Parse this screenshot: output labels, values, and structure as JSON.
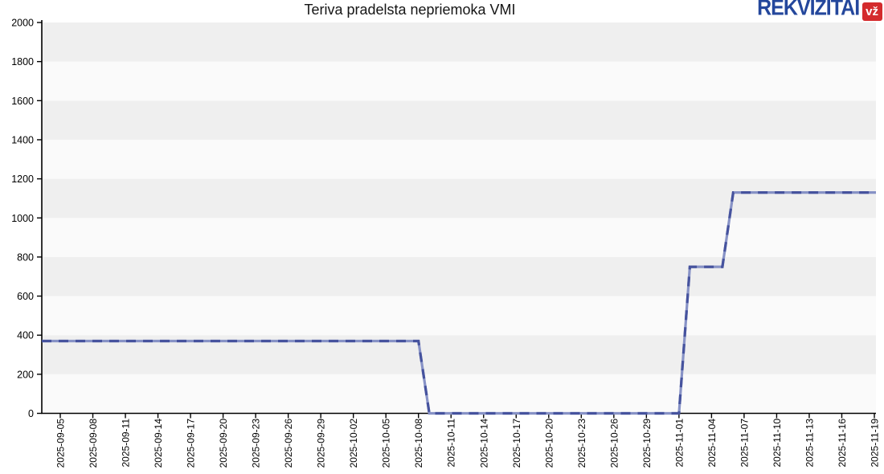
{
  "header": {
    "title": "Teriva pradelsta nepriemoka VMI",
    "logo": {
      "text": "REKVIZITAI",
      "badge": "vž",
      "brand_blue": "#24479c",
      "brand_red": "#d42b2d"
    }
  },
  "chart_data": {
    "type": "line",
    "title": "Teriva pradelsta nepriemoka VMI",
    "xlabel": "",
    "ylabel": "",
    "ylim": [
      0,
      2000
    ],
    "y_ticks": [
      0,
      200,
      400,
      600,
      800,
      1000,
      1200,
      1400,
      1600,
      1800,
      2000
    ],
    "x_tick_labels": [
      "2025-09-05",
      "2025-09-08",
      "2025-09-11",
      "2025-09-14",
      "2025-09-17",
      "2025-09-20",
      "2025-09-23",
      "2025-09-26",
      "2025-09-29",
      "2025-10-02",
      "2025-10-05",
      "2025-10-08",
      "2025-10-11",
      "2025-10-14",
      "2025-10-17",
      "2025-10-20",
      "2025-10-23",
      "2025-10-26",
      "2025-10-29",
      "2025-11-01",
      "2025-11-04",
      "2025-11-07",
      "2025-11-10",
      "2025-11-13",
      "2025-11-16",
      "2025-11-19"
    ],
    "grid": "alternating horizontal bands every 200 units",
    "legend_position": "none",
    "series": [
      {
        "name": "Pradelsta nepriemoka VMI",
        "line_style": "light solid line with dark dashed overlay",
        "points": [
          [
            "2025-09-03",
            370
          ],
          [
            "2025-10-08",
            370
          ],
          [
            "2025-10-09",
            0
          ],
          [
            "2025-11-01",
            0
          ],
          [
            "2025-11-02",
            750
          ],
          [
            "2025-11-05",
            750
          ],
          [
            "2025-11-06",
            1130
          ],
          [
            "2025-11-19",
            1130
          ]
        ]
      }
    ],
    "colors": {
      "line_light": "#8792c6",
      "line_dark": "#46539e",
      "band_gray": "#efefef",
      "band_light": "#fafafa",
      "axis": "#000000",
      "tick_label": "#000000"
    }
  }
}
